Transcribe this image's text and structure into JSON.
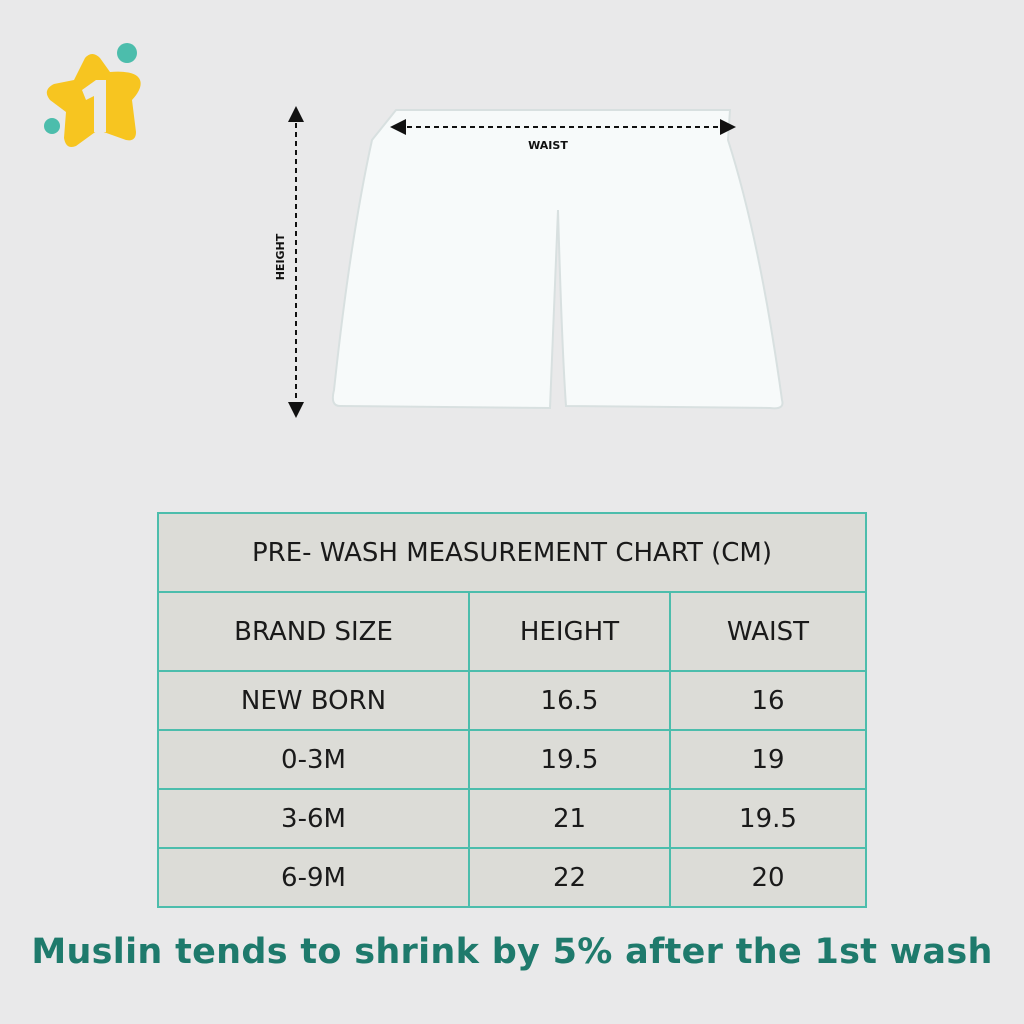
{
  "logo": {
    "icon": "star-one-logo",
    "colors": {
      "star": "#f7c520",
      "dots": "#4cbdac"
    }
  },
  "diagram": {
    "waist_label": "WAIST",
    "height_label": "HEIGHT"
  },
  "table": {
    "title": "PRE- WASH MEASUREMENT CHART (CM)",
    "headers": [
      "BRAND SIZE",
      "HEIGHT",
      "WAIST"
    ],
    "rows": [
      [
        "NEW BORN",
        "16.5",
        "16"
      ],
      [
        "0-3M",
        "19.5",
        "19"
      ],
      [
        "3-6M",
        "21",
        "19.5"
      ],
      [
        "6-9M",
        "22",
        "20"
      ]
    ],
    "border_color": "#4cbdac"
  },
  "footer": {
    "note": "Muslin tends to shrink by 5% after the 1st wash",
    "color": "#1e7a6c"
  }
}
